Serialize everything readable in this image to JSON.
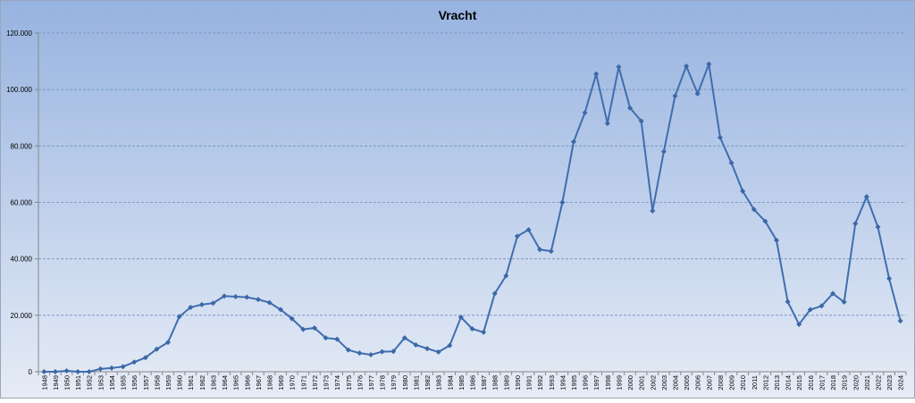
{
  "chart_data": {
    "type": "line",
    "title": "Vracht",
    "xlabel": "",
    "ylabel": "",
    "ylim": [
      0,
      120000
    ],
    "yticks": [
      0,
      20000,
      40000,
      60000,
      80000,
      100000,
      120000
    ],
    "ytick_labels": [
      "0",
      "20.000",
      "40.000",
      "60.000",
      "80.000",
      "100.000",
      "120.000"
    ],
    "grid": "horizontal-dashed",
    "legend": "none",
    "x": [
      "1948",
      "1949",
      "1950",
      "1951",
      "1952",
      "1953",
      "1954",
      "1955",
      "1956",
      "1957",
      "1958",
      "1959",
      "1960",
      "1961",
      "1962",
      "1963",
      "1964",
      "1965",
      "1966",
      "1967",
      "1968",
      "1969",
      "1970",
      "1971",
      "1972",
      "1973",
      "1974",
      "1975",
      "1976",
      "1977",
      "1978",
      "1979",
      "1980",
      "1981",
      "1982",
      "1983",
      "1984",
      "1985",
      "1986",
      "1987",
      "1988",
      "1989",
      "1990",
      "1991",
      "1992",
      "1993",
      "1994",
      "1995",
      "1996",
      "1997",
      "1998",
      "1999",
      "2000",
      "2001",
      "2002",
      "2003",
      "2004",
      "2005",
      "2006",
      "2007",
      "2008",
      "2009",
      "2010",
      "2011",
      "2012",
      "2013",
      "2014",
      "2015",
      "2016",
      "2017",
      "2018",
      "2019",
      "2020",
      "2021",
      "2022",
      "2023",
      "2024"
    ],
    "series": [
      {
        "values": [
          0,
          0,
          300,
          0,
          0,
          1000,
          1300,
          1800,
          3400,
          5000,
          8000,
          10400,
          19500,
          22800,
          23800,
          24300,
          26800,
          26600,
          26400,
          25600,
          24500,
          22000,
          18800,
          15000,
          15500,
          12000,
          11500,
          7700,
          6600,
          6000,
          7100,
          7200,
          12000,
          9500,
          8200,
          7000,
          9300,
          19300,
          15200,
          14000,
          27700,
          34000,
          48000,
          50300,
          43300,
          42700,
          60000,
          81500,
          91800,
          105500,
          88000,
          108000,
          93500,
          88800,
          57000,
          78000,
          97700,
          108300,
          98500,
          109000,
          83000,
          74000,
          64000,
          57500,
          53300,
          46600,
          24800,
          16800,
          22000,
          23300,
          27700,
          24700,
          52500,
          62000,
          51300,
          33000,
          18000
        ],
        "color": "#3f6eae"
      }
    ],
    "colors": {
      "line": "#3f6eae",
      "marker": "#3a68a8",
      "bg_top": "#97b3e0",
      "bg_bottom": "#e6ecf6",
      "grid": "#6f8fbf",
      "axis": "#888888"
    }
  }
}
